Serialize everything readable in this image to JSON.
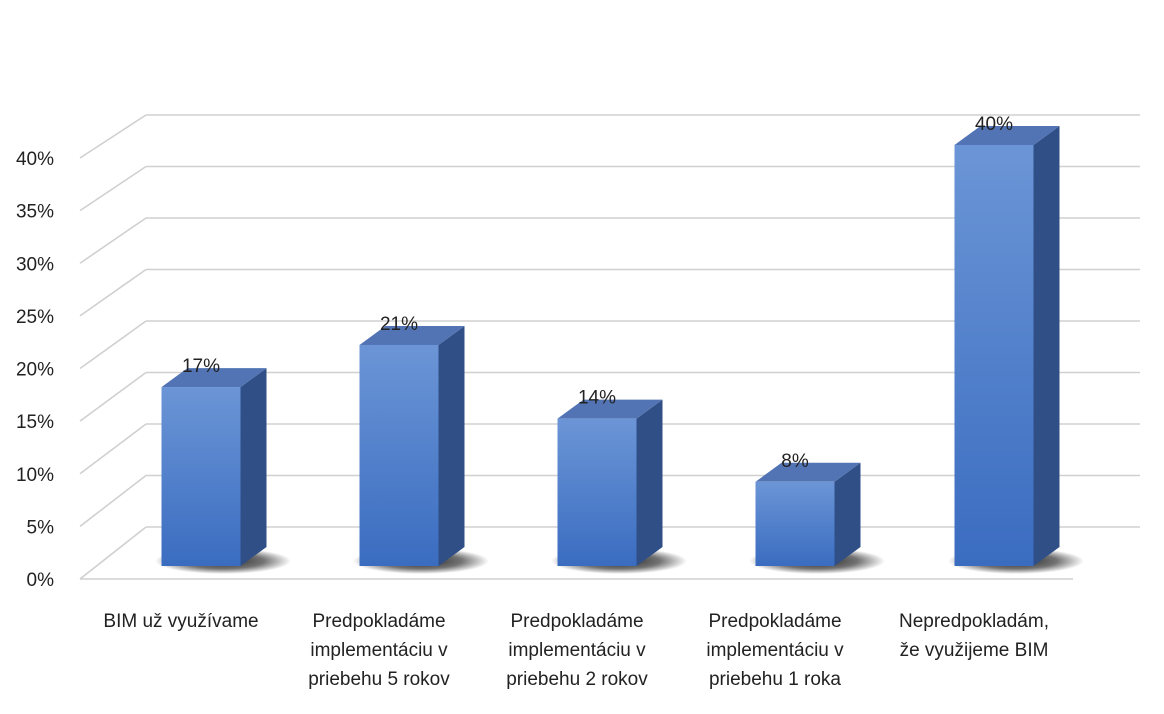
{
  "chart_data": {
    "type": "bar",
    "style": "3d-column",
    "categories": [
      [
        "BIM už využívame"
      ],
      [
        "Predpokladáme",
        "implementáciu v",
        "priebehu 5 rokov"
      ],
      [
        "Predpokladáme",
        "implementáciu v",
        "priebehu 2 rokov"
      ],
      [
        "Predpokladáme",
        "implementáciu v",
        "priebehu 1 roka"
      ],
      [
        "Nepredpokladám,",
        "že využijeme BIM"
      ]
    ],
    "values": [
      17,
      21,
      14,
      8,
      40
    ],
    "data_labels": [
      "17%",
      "21%",
      "14%",
      "8%",
      "40%"
    ],
    "ylim": [
      0,
      40
    ],
    "yticks": [
      0,
      5,
      10,
      15,
      20,
      25,
      30,
      35,
      40
    ],
    "ytick_labels": [
      "0%",
      "5%",
      "10%",
      "15%",
      "20%",
      "25%",
      "30%",
      "35%",
      "40%"
    ],
    "grid": true,
    "legend": "none",
    "title": "",
    "xlabel": "",
    "ylabel": "",
    "colors": {
      "bar_front_top": "#6b95d6",
      "bar_front_bottom": "#3a6cc0",
      "bar_side": "#2f4f86",
      "bar_top": "#5274b4",
      "grid": "#d0d0d0"
    }
  }
}
